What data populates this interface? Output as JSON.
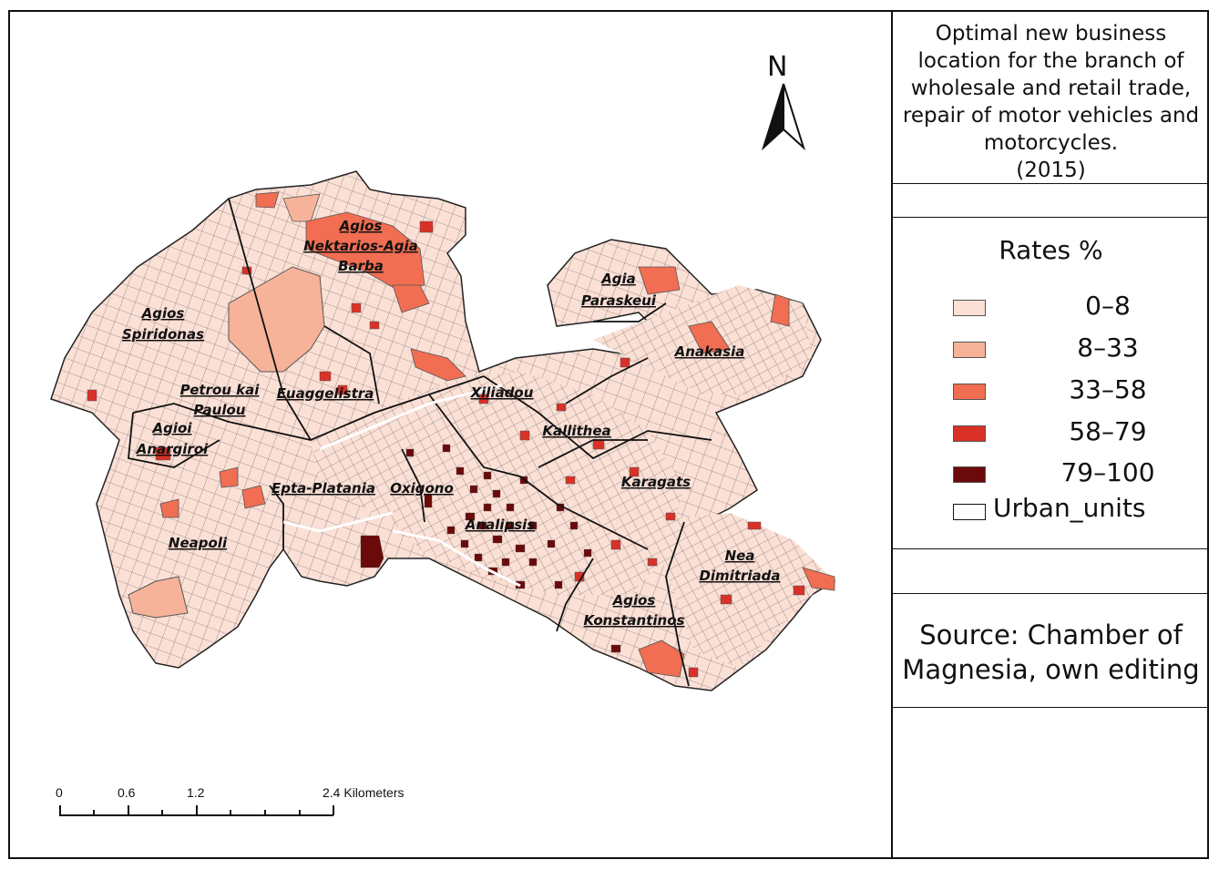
{
  "map": {
    "title_lines": [
      "Optimal new business",
      "location for the branch of",
      "wholesale and retail trade,",
      "repair of motor vehicles and",
      "motorcycles.",
      "(2015)"
    ],
    "north_label": "N",
    "source_lines": [
      "Source: Chamber of",
      "Magnesia, own editing"
    ],
    "legend": {
      "title": "Rates %",
      "classes": [
        {
          "label": "0–8",
          "color": "#fbe0d6"
        },
        {
          "label": "8–33",
          "color": "#f6b39a"
        },
        {
          "label": "33–58",
          "color": "#f16e52"
        },
        {
          "label": "58–79",
          "color": "#d93127"
        },
        {
          "label": "79–100",
          "color": "#6b0a0a"
        }
      ],
      "urban_units_label": "Urban_units"
    },
    "scale_bar": {
      "labels": [
        "0",
        "0.6",
        "1.2",
        "2.4 Kilometers"
      ]
    },
    "districts": [
      "Agios",
      "Nektarios-Agia",
      "Barba",
      "Agios",
      "Spiridonas",
      "Agia",
      "Paraskeui",
      "Anakasia",
      "Petrou kai",
      "Paulou",
      "Euaggelistra",
      "Xiliadou",
      "Kallithea",
      "Agioi",
      "Anargiroi",
      "Karagats",
      "Epta-Platania",
      "Oxigono",
      "Analipsis",
      "Nea",
      "Dimitriada",
      "Neapoli",
      "Agios",
      "Konstantinos"
    ]
  }
}
